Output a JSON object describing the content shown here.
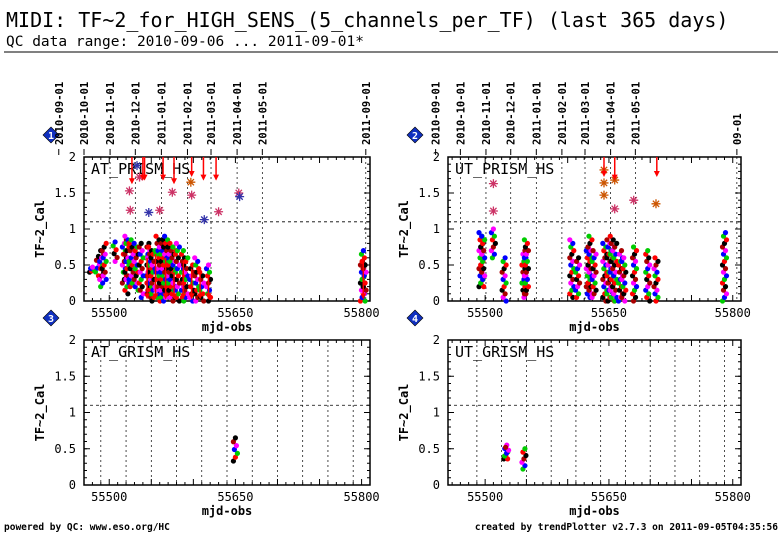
{
  "header": {
    "title": "MIDI: TF~2_for_HIGH_SENS_(5_channels_per_TF) (last 365 days)",
    "subtitle": "QC data range: 2010-09-06 ... 2011-09-01*"
  },
  "footer": {
    "left": "powered by QC: www.eso.org/HC",
    "right": "created by trendPlotter v2.7.3 on 2011-09-05T04:35:56"
  },
  "colors": {
    "black": "#000000",
    "red": "#ff0000",
    "green": "#00cc00",
    "blue": "#0000ff",
    "magenta": "#ff00ff",
    "darkred": "#aa0000",
    "orange": "#cc5500",
    "star_magenta": "#cc3366",
    "star_navy": "#3333aa",
    "badge": "#1030c0"
  },
  "chart_data": [
    {
      "type": "scatter",
      "panel_number": "1",
      "label": "AT_PRISM_HS",
      "xlabel": "mjd-obs",
      "ylabel": "TF~2_Cal",
      "xlim": [
        55470,
        55810
      ],
      "ylim": [
        0,
        2
      ],
      "xticks": [
        55500,
        55650,
        55800
      ],
      "yticks": [
        0,
        0.5,
        1,
        1.5,
        2
      ],
      "threshold": 1.1,
      "date_ticks": [
        {
          "label": "2010-09-01",
          "mjd": 55440
        },
        {
          "label": "2010-10-01",
          "mjd": 55470
        },
        {
          "label": "2010-11-01",
          "mjd": 55501
        },
        {
          "label": "2010-12-01",
          "mjd": 55531
        },
        {
          "label": "2011-01-01",
          "mjd": 55562
        },
        {
          "label": "2011-02-01",
          "mjd": 55593
        },
        {
          "label": "2011-03-01",
          "mjd": 55621
        },
        {
          "label": "2011-04-01",
          "mjd": 55652
        },
        {
          "label": "2011-05-01",
          "mjd": 55682
        },
        {
          "label": "2011-09-01",
          "mjd": 55805
        }
      ],
      "clusters": [
        {
          "x": 55479,
          "ymin": 0.4,
          "ymax": 0.47
        },
        {
          "x": 55486,
          "ymin": 0.35,
          "ymax": 0.62
        },
        {
          "x": 55491,
          "ymin": 0.2,
          "ymax": 0.7
        },
        {
          "x": 55494,
          "ymin": 0.3,
          "ymax": 0.8
        },
        {
          "x": 55507,
          "ymin": 0.55,
          "ymax": 0.82
        },
        {
          "x": 55518,
          "ymin": 0.25,
          "ymax": 0.85
        },
        {
          "x": 55521,
          "ymin": 0.1,
          "ymax": 0.9
        },
        {
          "x": 55526,
          "ymin": 0.2,
          "ymax": 0.85
        },
        {
          "x": 55532,
          "ymin": 0.15,
          "ymax": 0.8
        },
        {
          "x": 55538,
          "ymin": 0.05,
          "ymax": 0.8
        },
        {
          "x": 55546,
          "ymin": 0.1,
          "ymax": 0.8
        },
        {
          "x": 55548,
          "ymin": 0.05,
          "ymax": 0.75
        },
        {
          "x": 55552,
          "ymin": 0.0,
          "ymax": 0.7
        },
        {
          "x": 55558,
          "ymin": 0.0,
          "ymax": 0.9
        },
        {
          "x": 55562,
          "ymin": 0.05,
          "ymax": 0.85
        },
        {
          "x": 55567,
          "ymin": 0.0,
          "ymax": 0.9
        },
        {
          "x": 55571,
          "ymin": 0.05,
          "ymax": 0.8
        },
        {
          "x": 55577,
          "ymin": 0.0,
          "ymax": 0.75
        },
        {
          "x": 55581,
          "ymin": 0.0,
          "ymax": 0.8
        },
        {
          "x": 55587,
          "ymin": 0.05,
          "ymax": 0.7
        },
        {
          "x": 55591,
          "ymin": 0.0,
          "ymax": 0.6
        },
        {
          "x": 55598,
          "ymin": 0.0,
          "ymax": 0.5
        },
        {
          "x": 55604,
          "ymin": 0.0,
          "ymax": 0.6
        },
        {
          "x": 55610,
          "ymin": 0.0,
          "ymax": 0.4
        },
        {
          "x": 55618,
          "ymin": 0.0,
          "ymax": 0.5
        },
        {
          "x": 55801,
          "ymin": 0.0,
          "ymax": 0.7
        },
        {
          "x": 55803,
          "ymin": 0.0,
          "ymax": 0.55
        }
      ],
      "upper_points": [
        {
          "x": 55524,
          "y": 1.53,
          "color": "star_magenta"
        },
        {
          "x": 55525,
          "y": 1.26,
          "color": "star_magenta"
        },
        {
          "x": 55536,
          "y": 1.72,
          "color": "star_magenta"
        },
        {
          "x": 55533,
          "y": 1.88,
          "color": "star_navy"
        },
        {
          "x": 55547,
          "y": 1.23,
          "color": "star_navy"
        },
        {
          "x": 55560,
          "y": 1.26,
          "color": "star_magenta"
        },
        {
          "x": 55575,
          "y": 1.51,
          "color": "star_magenta"
        },
        {
          "x": 55597,
          "y": 1.65,
          "color": "orange"
        },
        {
          "x": 55598,
          "y": 1.47,
          "color": "star_magenta"
        },
        {
          "x": 55613,
          "y": 1.13,
          "color": "star_navy"
        },
        {
          "x": 55630,
          "y": 1.24,
          "color": "star_magenta"
        },
        {
          "x": 55654,
          "y": 1.5,
          "color": "star_magenta"
        },
        {
          "x": 55655,
          "y": 1.45,
          "color": "star_navy"
        }
      ],
      "overflow": [
        {
          "x": 55527,
          "top": 2.0,
          "bottom": 1.65
        },
        {
          "x": 55540,
          "top": 2.0,
          "bottom": 1.7
        },
        {
          "x": 55542,
          "top": 2.0,
          "bottom": 1.7
        },
        {
          "x": 55564,
          "top": 2.0,
          "bottom": 1.7
        },
        {
          "x": 55577,
          "top": 2.0,
          "bottom": 1.65
        },
        {
          "x": 55598,
          "top": 2.0,
          "bottom": 1.75
        },
        {
          "x": 55612,
          "top": 2.0,
          "bottom": 1.7
        },
        {
          "x": 55627,
          "top": 2.0,
          "bottom": 1.7
        },
        {
          "x": 55545,
          "top": 0.6,
          "bottom": 0.05
        },
        {
          "x": 55555,
          "top": 0.65,
          "bottom": 0.05
        },
        {
          "x": 55567,
          "top": 0.6,
          "bottom": 0.05
        },
        {
          "x": 55577,
          "top": 0.4,
          "bottom": 0.05
        },
        {
          "x": 55588,
          "top": 0.55,
          "bottom": 0.05
        },
        {
          "x": 55598,
          "top": 0.45,
          "bottom": 0.05
        },
        {
          "x": 55608,
          "top": 0.4,
          "bottom": 0.05
        },
        {
          "x": 55618,
          "top": 0.35,
          "bottom": 0.05
        },
        {
          "x": 55802,
          "top": 0.55,
          "bottom": 0.05
        }
      ]
    },
    {
      "type": "scatter",
      "panel_number": "2",
      "label": "UT_PRISM_HS",
      "xlabel": "mjd-obs",
      "ylabel": "TF~2_Cal",
      "xlim": [
        55455,
        55810
      ],
      "ylim": [
        0,
        2
      ],
      "xticks": [
        55500,
        55650,
        55800
      ],
      "yticks": [
        0,
        0.5,
        1,
        1.5,
        2
      ],
      "threshold": 1.1,
      "date_ticks": [
        {
          "label": "2010-09-01",
          "mjd": 55440
        },
        {
          "label": "2010-10-01",
          "mjd": 55470
        },
        {
          "label": "2010-11-01",
          "mjd": 55501
        },
        {
          "label": "2010-12-01",
          "mjd": 55531
        },
        {
          "label": "2011-01-01",
          "mjd": 55562
        },
        {
          "label": "2011-02-01",
          "mjd": 55593
        },
        {
          "label": "2011-03-01",
          "mjd": 55621
        },
        {
          "label": "2011-04-01",
          "mjd": 55652
        },
        {
          "label": "2011-05-01",
          "mjd": 55682
        },
        {
          "label": "09-01",
          "mjd": 55805
        }
      ],
      "clusters": [
        {
          "x": 55495,
          "ymin": 0.2,
          "ymax": 0.95
        },
        {
          "x": 55497,
          "ymin": 0.2,
          "ymax": 0.9
        },
        {
          "x": 55510,
          "ymin": 0.6,
          "ymax": 1.0
        },
        {
          "x": 55523,
          "ymin": 0.0,
          "ymax": 0.6
        },
        {
          "x": 55547,
          "ymin": 0.05,
          "ymax": 0.7
        },
        {
          "x": 55550,
          "ymin": 0.1,
          "ymax": 0.85
        },
        {
          "x": 55605,
          "ymin": 0.05,
          "ymax": 0.85
        },
        {
          "x": 55612,
          "ymin": 0.05,
          "ymax": 0.6
        },
        {
          "x": 55625,
          "ymin": 0.05,
          "ymax": 0.75
        },
        {
          "x": 55627,
          "ymin": 0.05,
          "ymax": 0.9
        },
        {
          "x": 55632,
          "ymin": 0.05,
          "ymax": 0.7
        },
        {
          "x": 55645,
          "ymin": 0.0,
          "ymax": 0.8
        },
        {
          "x": 55650,
          "ymin": 0.0,
          "ymax": 0.85
        },
        {
          "x": 55654,
          "ymin": 0.0,
          "ymax": 0.9
        },
        {
          "x": 55657,
          "ymin": 0.0,
          "ymax": 0.8
        },
        {
          "x": 55664,
          "ymin": 0.0,
          "ymax": 0.7
        },
        {
          "x": 55668,
          "ymin": 0.0,
          "ymax": 0.6
        },
        {
          "x": 55681,
          "ymin": 0.0,
          "ymax": 0.75
        },
        {
          "x": 55697,
          "ymin": 0.0,
          "ymax": 0.7
        },
        {
          "x": 55707,
          "ymin": 0.0,
          "ymax": 0.6
        },
        {
          "x": 55790,
          "ymin": 0.0,
          "ymax": 0.95
        }
      ],
      "upper_points": [
        {
          "x": 55510,
          "y": 1.63,
          "color": "star_magenta"
        },
        {
          "x": 55510,
          "y": 1.25,
          "color": "star_magenta"
        },
        {
          "x": 55644,
          "y": 1.64,
          "color": "orange"
        },
        {
          "x": 55644,
          "y": 1.47,
          "color": "orange"
        },
        {
          "x": 55644,
          "y": 1.82,
          "color": "orange"
        },
        {
          "x": 55657,
          "y": 1.68,
          "color": "orange"
        },
        {
          "x": 55657,
          "y": 1.28,
          "color": "star_magenta"
        },
        {
          "x": 55680,
          "y": 1.4,
          "color": "star_magenta"
        },
        {
          "x": 55707,
          "y": 1.35,
          "color": "orange"
        }
      ],
      "overflow": [
        {
          "x": 55644,
          "top": 2.0,
          "bottom": 1.75
        },
        {
          "x": 55657,
          "top": 2.0,
          "bottom": 1.7
        },
        {
          "x": 55708,
          "top": 2.0,
          "bottom": 1.75
        }
      ]
    },
    {
      "type": "scatter",
      "panel_number": "3",
      "label": "AT_GRISM_HS",
      "xlabel": "mjd-obs",
      "ylabel": "TF~2_Cal",
      "xlim": [
        55470,
        55810
      ],
      "ylim": [
        0,
        2
      ],
      "xticks": [
        55500,
        55650,
        55800
      ],
      "yticks": [
        0,
        0.5,
        1,
        1.5,
        2
      ],
      "threshold": 1.1,
      "clusters": [
        {
          "x": 55650,
          "ymin": 0.33,
          "ymax": 0.65
        }
      ],
      "upper_points": [],
      "overflow": []
    },
    {
      "type": "scatter",
      "panel_number": "4",
      "label": "UT_GRISM_HS",
      "xlabel": "mjd-obs",
      "ylabel": "TF~2_Cal",
      "xlim": [
        55455,
        55810
      ],
      "ylim": [
        0,
        2
      ],
      "xticks": [
        55500,
        55650,
        55800
      ],
      "yticks": [
        0,
        0.5,
        1,
        1.5,
        2
      ],
      "threshold": 1.1,
      "clusters": [
        {
          "x": 55525,
          "ymin": 0.36,
          "ymax": 0.55
        },
        {
          "x": 55526,
          "ymin": 0.36,
          "ymax": 0.52
        },
        {
          "x": 55547,
          "ymin": 0.22,
          "ymax": 0.5
        }
      ],
      "upper_points": [],
      "overflow": []
    }
  ]
}
